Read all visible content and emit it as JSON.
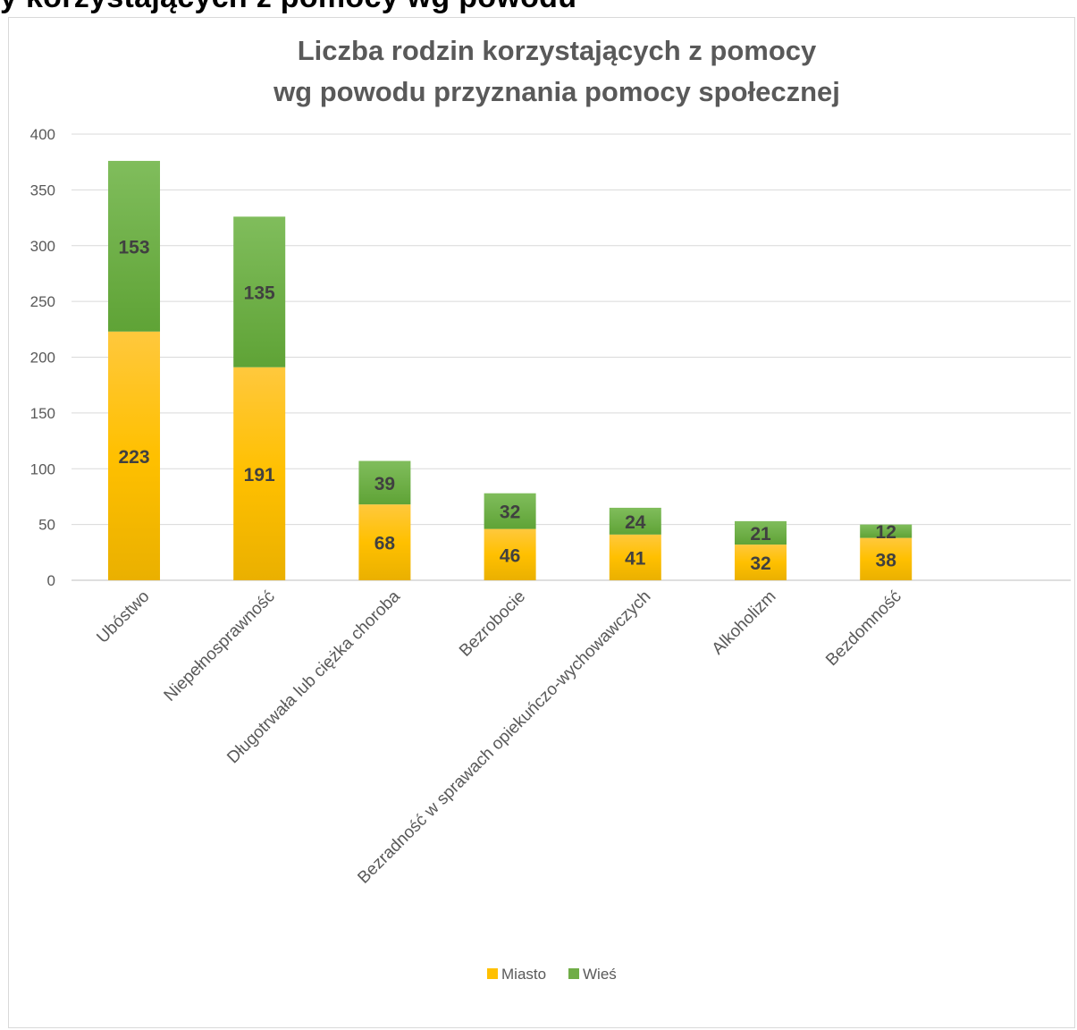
{
  "heading": "y                                  korzystających z pomocy wg powodu",
  "chart_data": {
    "type": "bar",
    "stacked": true,
    "title_lines": [
      "Liczba rodzin korzystających z pomocy",
      "wg powodu przyznania pomocy społecznej"
    ],
    "categories": [
      "Ubóstwo",
      "Niepełnosprawność",
      "Długotrwała lub ciężka choroba",
      "Bezrobocie",
      "Bezradność w sprawach opiekuńczo-wychowawczych",
      "Alkoholizm",
      "Bezdomność"
    ],
    "series": [
      {
        "name": "Miasto",
        "values": [
          223,
          191,
          68,
          46,
          41,
          32,
          38
        ],
        "color": "#ffc000"
      },
      {
        "name": "Wieś",
        "values": [
          153,
          135,
          39,
          32,
          24,
          21,
          12
        ],
        "color": "#70ad47"
      }
    ],
    "ylim": [
      0,
      400
    ],
    "yticks": [
      0,
      50,
      100,
      150,
      200,
      250,
      300,
      350,
      400
    ],
    "grid": true,
    "legend": "bottom"
  }
}
